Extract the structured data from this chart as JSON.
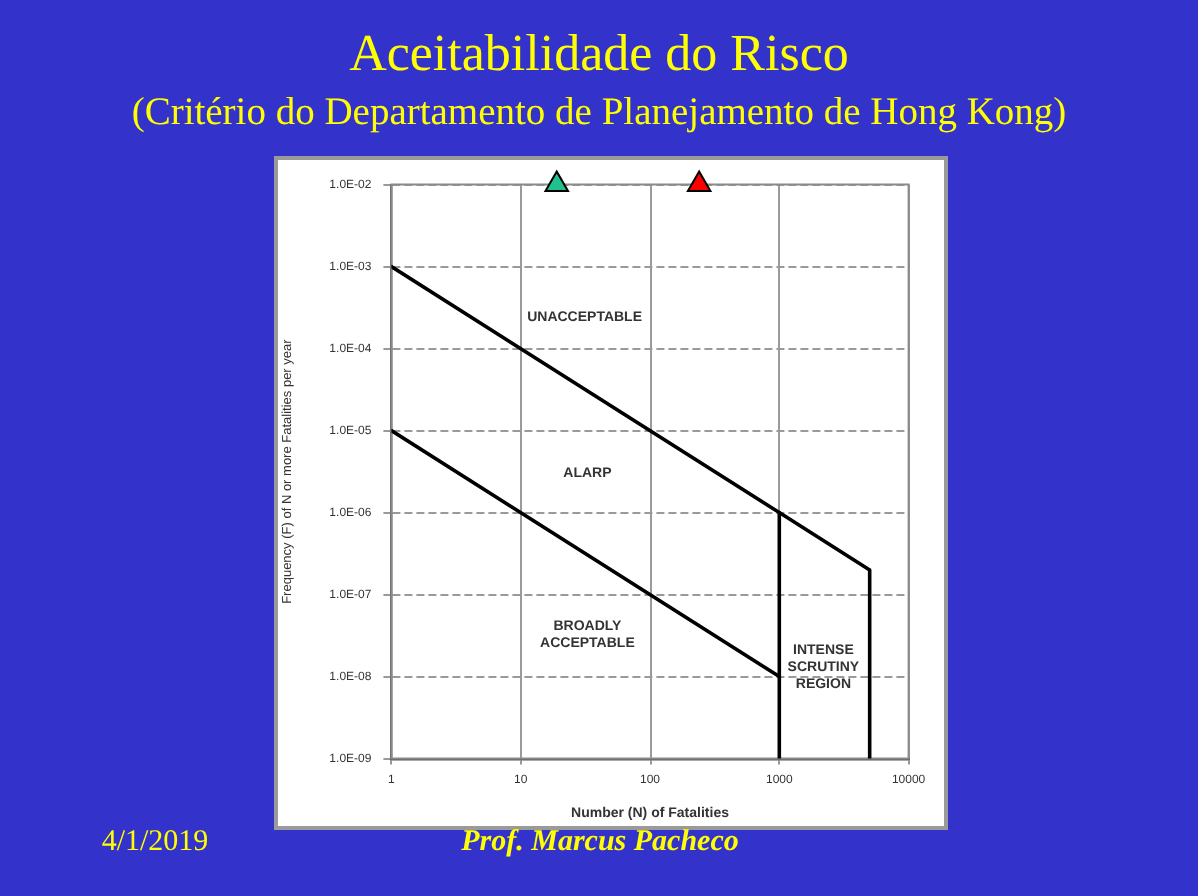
{
  "chart_data": {
    "type": "line",
    "title": "Aceitabilidade do Risco",
    "subtitle": "(Critério do Departamento de Planejamento de Hong Kong)",
    "xlabel": "Number (N) of Fatalities",
    "ylabel": "Frequency (F) of N or more Fatalities per year",
    "series": [
      {
        "color": "#000000",
        "x": [
          1,
          1000,
          5000,
          5000
        ],
        "values": [
          0.001,
          1e-06,
          2e-07,
          1e-09
        ]
      },
      {
        "color": "#000000",
        "x": [
          1,
          1000
        ],
        "values": [
          1e-05,
          1e-08
        ]
      },
      {
        "color": "#000000",
        "x": [
          1000,
          1000
        ],
        "values": [
          1e-06,
          1e-09
        ]
      },
      {
        "type": "scatter",
        "marker": "triangle",
        "x": [
          19,
          240
        ],
        "values": [
          0.01,
          0.01
        ],
        "colors": [
          "#20c090",
          "#ff0000"
        ]
      }
    ],
    "log": "xy",
    "xlim": [
      1,
      10000
    ],
    "ylim": [
      1e-09,
      0.01
    ],
    "xticks": [
      1,
      10,
      100,
      1000,
      10000
    ],
    "yticks": [
      {
        "value": 0.01,
        "label": "1.0E-02"
      },
      {
        "value": 0.001,
        "label": "1.0E-03"
      },
      {
        "value": 0.0001,
        "label": "1.0E-04"
      },
      {
        "value": 1e-05,
        "label": "1.0E-05"
      },
      {
        "value": 1e-06,
        "label": "1.0E-06"
      },
      {
        "value": 1e-07,
        "label": "1.0E-07"
      },
      {
        "value": 1e-08,
        "label": "1.0E-08"
      },
      {
        "value": 1e-09,
        "label": "1.0E-09"
      }
    ],
    "grid": true,
    "legend": false,
    "marker": "none",
    "line_style": "solid",
    "annotations": [
      "UNACCEPTABLE",
      "ALARP",
      "BROADLY\nACCEPTABLE",
      "INTENSE\nSCRUTINY\nREGION",
      "4/1/2019",
      "Prof. Marcus Pacheco"
    ]
  }
}
